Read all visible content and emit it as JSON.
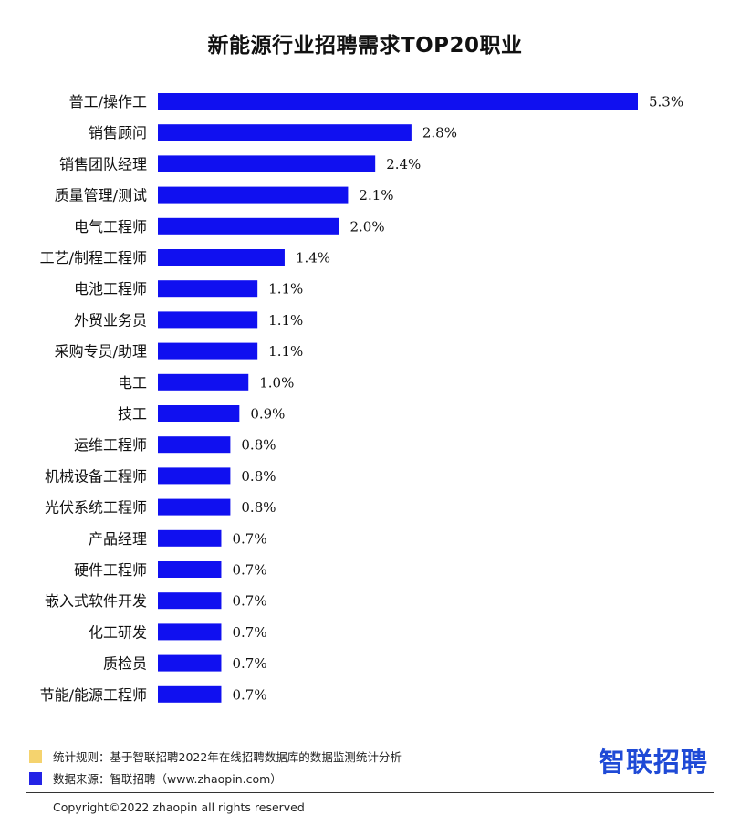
{
  "title": "新能源行业招聘需求TOP20职业",
  "colors": {
    "bar": "#1010f0",
    "legend_rule": "#f5d36e",
    "legend_source": "#2323e6",
    "brand": "#1f4ad6"
  },
  "chart_data": {
    "type": "bar",
    "orientation": "horizontal",
    "title": "新能源行业招聘需求TOP20职业",
    "categories": [
      "普工/操作工",
      "销售顾问",
      "销售团队经理",
      "质量管理/测试",
      "电气工程师",
      "工艺/制程工程师",
      "电池工程师",
      "外贸业务员",
      "采购专员/助理",
      "电工",
      "技工",
      "运维工程师",
      "机械设备工程师",
      "光伏系统工程师",
      "产品经理",
      "硬件工程师",
      "嵌入式软件开发",
      "化工研发",
      "质检员",
      "节能/能源工程师"
    ],
    "values": [
      5.3,
      2.8,
      2.4,
      2.1,
      2.0,
      1.4,
      1.1,
      1.1,
      1.1,
      1.0,
      0.9,
      0.8,
      0.8,
      0.8,
      0.7,
      0.7,
      0.7,
      0.7,
      0.7,
      0.7
    ],
    "value_labels": [
      "5.3%",
      "2.8%",
      "2.4%",
      "2.1%",
      "2.0%",
      "1.4%",
      "1.1%",
      "1.1%",
      "1.1%",
      "1.0%",
      "0.9%",
      "0.8%",
      "0.8%",
      "0.8%",
      "0.7%",
      "0.7%",
      "0.7%",
      "0.7%",
      "0.7%",
      "0.7%"
    ],
    "xlim": [
      0,
      5.3
    ],
    "grid": false,
    "legend": "none"
  },
  "legend": {
    "rule_text": "统计规则：基于智联招聘2022年在线招聘数据库的数据监测统计分析",
    "source_text": "数据来源：智联招聘（www.zhaopin.com）"
  },
  "brand": {
    "logo_text": "智联招聘"
  },
  "footer": {
    "copyright": "Copyright©2022 zhaopin all rights reserved"
  }
}
